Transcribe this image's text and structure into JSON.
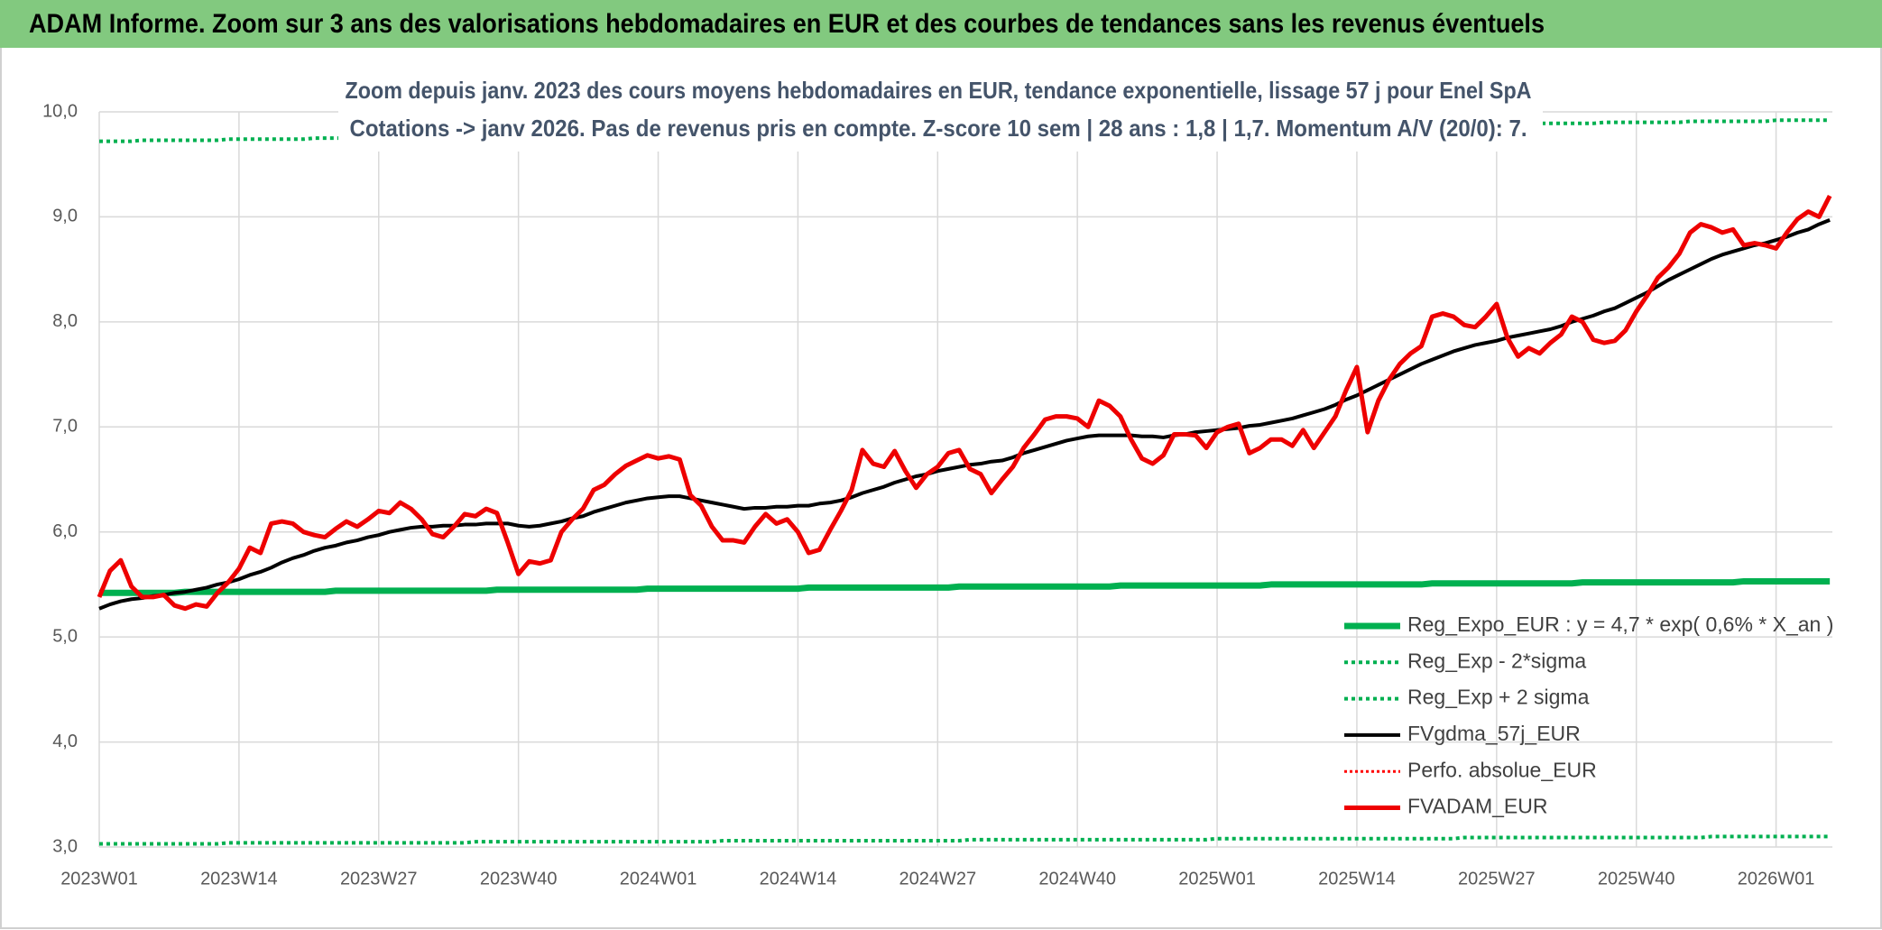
{
  "chart_data": {
    "type": "line",
    "title": "ADAM Informe. Zoom sur 3 ans des valorisations hebdomadaires en EUR et des courbes de tendances sans les revenus éventuels",
    "subtitle": [
      "Zoom depuis janv. 2023 des cours moyens hebdomadaires en EUR, tendance exponentielle, lissage 57 j pour Enel SpA",
      "Cotations -> janv 2026. Pas de revenus pris en compte. Z-score 10 sem | 28 ans : 1,8 | 1,7. Momentum A/V (20/0): 7."
    ],
    "categories": [
      "2023W01",
      null,
      null,
      null,
      null,
      null,
      null,
      null,
      null,
      null,
      null,
      null,
      null,
      "2023W14",
      null,
      null,
      null,
      null,
      null,
      null,
      null,
      null,
      null,
      null,
      null,
      null,
      "2023W27",
      null,
      null,
      null,
      null,
      null,
      null,
      null,
      null,
      null,
      null,
      null,
      null,
      "2023W40",
      null,
      null,
      null,
      null,
      null,
      null,
      null,
      null,
      null,
      null,
      null,
      null,
      "2024W01",
      null,
      null,
      null,
      null,
      null,
      null,
      null,
      null,
      null,
      null,
      null,
      null,
      "2024W14",
      null,
      null,
      null,
      null,
      null,
      null,
      null,
      null,
      null,
      null,
      null,
      null,
      "2024W27",
      null,
      null,
      null,
      null,
      null,
      null,
      null,
      null,
      null,
      null,
      null,
      null,
      "2024W40",
      null,
      null,
      null,
      null,
      null,
      null,
      null,
      null,
      null,
      null,
      null,
      null,
      "2025W01",
      null,
      null,
      null,
      null,
      null,
      null,
      null,
      null,
      null,
      null,
      null,
      null,
      "2025W14",
      null,
      null,
      null,
      null,
      null,
      null,
      null,
      null,
      null,
      null,
      null,
      null,
      "2025W27",
      null,
      null,
      null,
      null,
      null,
      null,
      null,
      null,
      null,
      null,
      null,
      null,
      "2025W40",
      null,
      null,
      null,
      null,
      null,
      null,
      null,
      null,
      null,
      null,
      null,
      null,
      "2026W01",
      null,
      null,
      null,
      null,
      null
    ],
    "ylim": [
      3,
      10
    ],
    "yticks": [
      {
        "value": 3,
        "label": "3,0"
      },
      {
        "value": 4,
        "label": "4,0"
      },
      {
        "value": 5,
        "label": "5,0"
      },
      {
        "value": 6,
        "label": "6,0"
      },
      {
        "value": 7,
        "label": "7,0"
      },
      {
        "value": 8,
        "label": "8,0"
      },
      {
        "value": 9,
        "label": "9,0"
      },
      {
        "value": 10,
        "label": "10,0"
      }
    ],
    "grid": true,
    "legend": "lower right",
    "series": [
      {
        "name": "Reg_Expo_EUR : y = 4,7 * exp( 0,6% *  X_an )",
        "color": "#00b050",
        "dash": "solid",
        "width": 7,
        "values": [
          5.42,
          5.42,
          5.42,
          5.42,
          5.42,
          5.42,
          5.42,
          5.42,
          5.43,
          5.43,
          5.43,
          5.43,
          5.43,
          5.43,
          5.43,
          5.43,
          5.43,
          5.43,
          5.43,
          5.43,
          5.43,
          5.43,
          5.44,
          5.44,
          5.44,
          5.44,
          5.44,
          5.44,
          5.44,
          5.44,
          5.44,
          5.44,
          5.44,
          5.44,
          5.44,
          5.44,
          5.44,
          5.45,
          5.45,
          5.45,
          5.45,
          5.45,
          5.45,
          5.45,
          5.45,
          5.45,
          5.45,
          5.45,
          5.45,
          5.45,
          5.45,
          5.46,
          5.46,
          5.46,
          5.46,
          5.46,
          5.46,
          5.46,
          5.46,
          5.46,
          5.46,
          5.46,
          5.46,
          5.46,
          5.46,
          5.46,
          5.47,
          5.47,
          5.47,
          5.47,
          5.47,
          5.47,
          5.47,
          5.47,
          5.47,
          5.47,
          5.47,
          5.47,
          5.47,
          5.47,
          5.48,
          5.48,
          5.48,
          5.48,
          5.48,
          5.48,
          5.48,
          5.48,
          5.48,
          5.48,
          5.48,
          5.48,
          5.48,
          5.48,
          5.48,
          5.49,
          5.49,
          5.49,
          5.49,
          5.49,
          5.49,
          5.49,
          5.49,
          5.49,
          5.49,
          5.49,
          5.49,
          5.49,
          5.49,
          5.5,
          5.5,
          5.5,
          5.5,
          5.5,
          5.5,
          5.5,
          5.5,
          5.5,
          5.5,
          5.5,
          5.5,
          5.5,
          5.5,
          5.5,
          5.51,
          5.51,
          5.51,
          5.51,
          5.51,
          5.51,
          5.51,
          5.51,
          5.51,
          5.51,
          5.51,
          5.51,
          5.51,
          5.51,
          5.52,
          5.52,
          5.52,
          5.52,
          5.52,
          5.52,
          5.52,
          5.52,
          5.52,
          5.52,
          5.52,
          5.52,
          5.52,
          5.52,
          5.52,
          5.53,
          5.53,
          5.53,
          5.53,
          5.53,
          5.53,
          5.53,
          5.53,
          5.53
        ]
      },
      {
        "name": "Reg_Exp - 2*sigma",
        "color": "#00b050",
        "dash": "dotted",
        "width": 4,
        "values": [
          3.03,
          3.03,
          3.03,
          3.03,
          3.03,
          3.03,
          3.03,
          3.03,
          3.03,
          3.03,
          3.03,
          3.03,
          3.04,
          3.04,
          3.04,
          3.04,
          3.04,
          3.04,
          3.04,
          3.04,
          3.04,
          3.04,
          3.04,
          3.04,
          3.04,
          3.04,
          3.04,
          3.04,
          3.04,
          3.04,
          3.04,
          3.04,
          3.04,
          3.04,
          3.04,
          3.05,
          3.05,
          3.05,
          3.05,
          3.05,
          3.05,
          3.05,
          3.05,
          3.05,
          3.05,
          3.05,
          3.05,
          3.05,
          3.05,
          3.05,
          3.05,
          3.05,
          3.05,
          3.05,
          3.05,
          3.05,
          3.05,
          3.05,
          3.06,
          3.06,
          3.06,
          3.06,
          3.06,
          3.06,
          3.06,
          3.06,
          3.06,
          3.06,
          3.06,
          3.06,
          3.06,
          3.06,
          3.06,
          3.06,
          3.06,
          3.06,
          3.06,
          3.06,
          3.06,
          3.06,
          3.06,
          3.07,
          3.07,
          3.07,
          3.07,
          3.07,
          3.07,
          3.07,
          3.07,
          3.07,
          3.07,
          3.07,
          3.07,
          3.07,
          3.07,
          3.07,
          3.07,
          3.07,
          3.07,
          3.07,
          3.07,
          3.07,
          3.07,
          3.07,
          3.08,
          3.08,
          3.08,
          3.08,
          3.08,
          3.08,
          3.08,
          3.08,
          3.08,
          3.08,
          3.08,
          3.08,
          3.08,
          3.08,
          3.08,
          3.08,
          3.08,
          3.08,
          3.08,
          3.08,
          3.08,
          3.08,
          3.08,
          3.09,
          3.09,
          3.09,
          3.09,
          3.09,
          3.09,
          3.09,
          3.09,
          3.09,
          3.09,
          3.09,
          3.09,
          3.09,
          3.09,
          3.09,
          3.09,
          3.09,
          3.09,
          3.09,
          3.09,
          3.09,
          3.09,
          3.09,
          3.1,
          3.1,
          3.1,
          3.1,
          3.1,
          3.1,
          3.1,
          3.1,
          3.1,
          3.1,
          3.1,
          3.1
        ]
      },
      {
        "name": "Reg_Exp + 2 sigma",
        "color": "#00b050",
        "dash": "dotted",
        "width": 4,
        "values": [
          9.72,
          9.72,
          9.72,
          9.72,
          9.73,
          9.73,
          9.73,
          9.73,
          9.73,
          9.73,
          9.73,
          9.73,
          9.74,
          9.74,
          9.74,
          9.74,
          9.74,
          9.74,
          9.74,
          9.74,
          9.75,
          9.75,
          9.75,
          9.75,
          9.75,
          9.75,
          9.75,
          9.75,
          9.76,
          9.76,
          9.76,
          9.76,
          9.76,
          9.76,
          9.76,
          9.76,
          9.77,
          9.77,
          9.77,
          9.77,
          9.77,
          9.77,
          9.77,
          9.77,
          9.78,
          9.78,
          9.78,
          9.78,
          9.78,
          9.78,
          9.78,
          9.78,
          9.79,
          9.79,
          9.79,
          9.79,
          9.79,
          9.79,
          9.79,
          9.79,
          9.8,
          9.8,
          9.8,
          9.8,
          9.8,
          9.8,
          9.8,
          9.8,
          9.81,
          9.81,
          9.81,
          9.81,
          9.81,
          9.81,
          9.81,
          9.81,
          9.82,
          9.82,
          9.82,
          9.82,
          9.82,
          9.82,
          9.82,
          9.82,
          9.83,
          9.83,
          9.83,
          9.83,
          9.83,
          9.83,
          9.83,
          9.83,
          9.84,
          9.84,
          9.84,
          9.84,
          9.84,
          9.84,
          9.84,
          9.84,
          9.85,
          9.85,
          9.85,
          9.85,
          9.85,
          9.85,
          9.85,
          9.85,
          9.86,
          9.86,
          9.86,
          9.86,
          9.86,
          9.86,
          9.86,
          9.86,
          9.87,
          9.87,
          9.87,
          9.87,
          9.87,
          9.87,
          9.87,
          9.87,
          9.88,
          9.88,
          9.88,
          9.88,
          9.88,
          9.88,
          9.88,
          9.88,
          9.89,
          9.89,
          9.89,
          9.89,
          9.89,
          9.89,
          9.89,
          9.89,
          9.9,
          9.9,
          9.9,
          9.9,
          9.9,
          9.9,
          9.9,
          9.9,
          9.91,
          9.91,
          9.91,
          9.91,
          9.91,
          9.91,
          9.91,
          9.91,
          9.92,
          9.92,
          9.92,
          9.92,
          9.92,
          9.92
        ]
      },
      {
        "name": "FVgdma_57j_EUR",
        "color": "#000000",
        "dash": "solid",
        "width": 4,
        "values": [
          5.27,
          5.31,
          5.34,
          5.36,
          5.37,
          5.39,
          5.4,
          5.42,
          5.43,
          5.45,
          5.47,
          5.5,
          5.52,
          5.55,
          5.59,
          5.62,
          5.66,
          5.71,
          5.75,
          5.78,
          5.82,
          5.85,
          5.87,
          5.9,
          5.92,
          5.95,
          5.97,
          6.0,
          6.02,
          6.04,
          6.05,
          6.05,
          6.06,
          6.06,
          6.07,
          6.07,
          6.08,
          6.08,
          6.08,
          6.06,
          6.05,
          6.06,
          6.08,
          6.1,
          6.13,
          6.15,
          6.19,
          6.22,
          6.25,
          6.28,
          6.3,
          6.32,
          6.33,
          6.34,
          6.34,
          6.32,
          6.3,
          6.28,
          6.26,
          6.24,
          6.22,
          6.23,
          6.23,
          6.24,
          6.24,
          6.25,
          6.25,
          6.27,
          6.28,
          6.3,
          6.33,
          6.37,
          6.4,
          6.43,
          6.47,
          6.5,
          6.53,
          6.55,
          6.58,
          6.6,
          6.62,
          6.64,
          6.65,
          6.67,
          6.68,
          6.71,
          6.75,
          6.78,
          6.81,
          6.84,
          6.87,
          6.89,
          6.91,
          6.92,
          6.92,
          6.92,
          6.92,
          6.91,
          6.91,
          6.9,
          6.92,
          6.93,
          6.95,
          6.96,
          6.97,
          6.98,
          6.99,
          7.01,
          7.02,
          7.04,
          7.06,
          7.08,
          7.11,
          7.14,
          7.17,
          7.21,
          7.26,
          7.3,
          7.35,
          7.4,
          7.45,
          7.5,
          7.55,
          7.6,
          7.64,
          7.68,
          7.72,
          7.75,
          7.78,
          7.8,
          7.82,
          7.85,
          7.87,
          7.89,
          7.91,
          7.93,
          7.96,
          8.0,
          8.03,
          8.06,
          8.1,
          8.13,
          8.18,
          8.23,
          8.28,
          8.34,
          8.4,
          8.45,
          8.5,
          8.55,
          8.6,
          8.64,
          8.67,
          8.7,
          8.73,
          8.75,
          8.78,
          8.81,
          8.85,
          8.88,
          8.93,
          8.97
        ]
      },
      {
        "name": "Perfo. absolue_EUR",
        "color": "#ff0000",
        "dash": "dotted",
        "width": 3
      },
      {
        "name": "FVADAM_EUR",
        "color": "#ee0000",
        "dash": "solid",
        "width": 5,
        "values": [
          5.38,
          5.63,
          5.73,
          5.48,
          5.38,
          5.38,
          5.4,
          5.3,
          5.27,
          5.31,
          5.29,
          5.42,
          5.52,
          5.65,
          5.85,
          5.8,
          6.08,
          6.1,
          6.08,
          6.0,
          5.97,
          5.95,
          6.03,
          6.1,
          6.05,
          6.12,
          6.2,
          6.18,
          6.28,
          6.22,
          6.12,
          5.98,
          5.95,
          6.05,
          6.17,
          6.15,
          6.22,
          6.18,
          5.9,
          5.6,
          5.72,
          5.7,
          5.73,
          6.0,
          6.12,
          6.22,
          6.4,
          6.45,
          6.55,
          6.63,
          6.68,
          6.73,
          6.7,
          6.72,
          6.69,
          6.35,
          6.25,
          6.05,
          5.92,
          5.92,
          5.9,
          6.05,
          6.17,
          6.08,
          6.12,
          6.0,
          5.8,
          5.83,
          6.02,
          6.2,
          6.4,
          6.78,
          6.65,
          6.62,
          6.77,
          6.58,
          6.42,
          6.55,
          6.62,
          6.75,
          6.78,
          6.6,
          6.55,
          6.37,
          6.5,
          6.62,
          6.8,
          6.93,
          7.07,
          7.1,
          7.1,
          7.08,
          7.0,
          7.25,
          7.2,
          7.1,
          6.88,
          6.7,
          6.65,
          6.73,
          6.93,
          6.93,
          6.92,
          6.8,
          6.95,
          7.0,
          7.03,
          6.75,
          6.8,
          6.88,
          6.88,
          6.82,
          6.97,
          6.8,
          6.95,
          7.1,
          7.35,
          7.57,
          6.95,
          7.25,
          7.45,
          7.6,
          7.7,
          7.77,
          8.05,
          8.08,
          8.05,
          7.97,
          7.95,
          8.05,
          8.17,
          7.85,
          7.67,
          7.75,
          7.7,
          7.8,
          7.88,
          8.05,
          8.0,
          7.83,
          7.8,
          7.82,
          7.92,
          8.1,
          8.25,
          8.42,
          8.52,
          8.65,
          8.85,
          8.93,
          8.9,
          8.85,
          8.88,
          8.73,
          8.75,
          8.73,
          8.7,
          8.85,
          8.98,
          9.05,
          9.0,
          9.2
        ]
      }
    ]
  }
}
